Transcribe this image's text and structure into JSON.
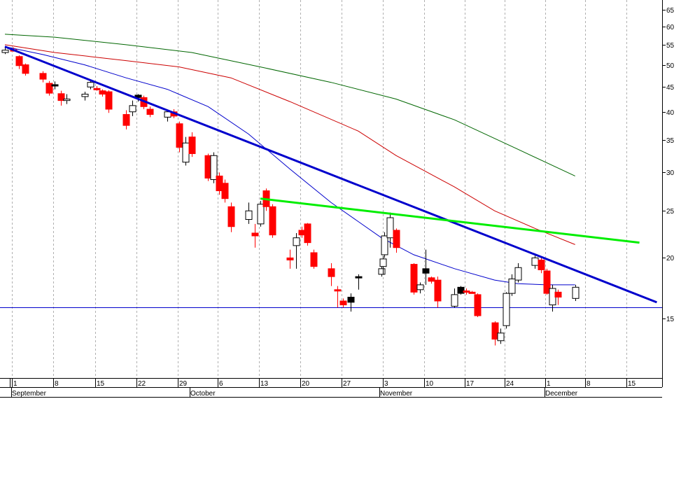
{
  "chart_data": {
    "type": "candlestick",
    "scale": "log",
    "ylim": [
      11.5,
      68
    ],
    "y_ticks": [
      15,
      20,
      25,
      30,
      35,
      40,
      45,
      50,
      55,
      60,
      65
    ],
    "grid": "vertical dashed lines at week starts",
    "x_day_labels": [
      "1",
      "8",
      "15",
      "22",
      "29",
      "6",
      "13",
      "20",
      "27",
      "3",
      "10",
      "17",
      "24",
      "1",
      "8",
      "15"
    ],
    "x_day_label_dates": [
      "09-01",
      "09-08",
      "09-15",
      "09-22",
      "09-29",
      "10-06",
      "10-13",
      "10-20",
      "10-27",
      "11-03",
      "11-10",
      "11-17",
      "11-24",
      "12-01",
      "12-08",
      "12-15"
    ],
    "month_labels": [
      {
        "label": "September",
        "date": "09-01"
      },
      {
        "label": "October",
        "date": "10-01"
      },
      {
        "label": "November",
        "date": "11-01"
      },
      {
        "label": "December",
        "date": "12-01"
      }
    ],
    "candles": [
      {
        "date": "08-30",
        "open": 53.0,
        "high": 54.4,
        "low": 52.6,
        "close": 53.6,
        "color": "white"
      },
      {
        "date": "09-01",
        "open": 53.6,
        "high": 54.3,
        "low": 53.2,
        "close": 53.7,
        "color": "red"
      },
      {
        "date": "09-02",
        "open": 52.0,
        "high": 52.3,
        "low": 49.0,
        "close": 49.8,
        "color": "red"
      },
      {
        "date": "09-03",
        "open": 50.0,
        "high": 50.3,
        "low": 47.5,
        "close": 48.0,
        "color": "red"
      },
      {
        "date": "09-06",
        "open": 48.0,
        "high": 48.5,
        "low": 46.0,
        "close": 46.7,
        "color": "red"
      },
      {
        "date": "09-07",
        "open": 45.8,
        "high": 46.3,
        "low": 43.2,
        "close": 43.7,
        "color": "red"
      },
      {
        "date": "09-08",
        "open": 45.5,
        "high": 46.2,
        "low": 44.5,
        "close": 45.2,
        "color": "black"
      },
      {
        "date": "09-09",
        "open": 43.6,
        "high": 44.2,
        "low": 41.2,
        "close": 42.2,
        "color": "red"
      },
      {
        "date": "09-10",
        "open": 42.2,
        "high": 43.5,
        "low": 41.5,
        "close": 42.5,
        "color": "white"
      },
      {
        "date": "09-13",
        "open": 43.0,
        "high": 44.0,
        "low": 42.2,
        "close": 43.5,
        "color": "white"
      },
      {
        "date": "09-14",
        "open": 45.0,
        "high": 46.6,
        "low": 44.5,
        "close": 46.0,
        "color": "white"
      },
      {
        "date": "09-15",
        "open": 44.6,
        "high": 45.2,
        "low": 44.2,
        "close": 44.7,
        "color": "red"
      },
      {
        "date": "09-16",
        "open": 43.5,
        "high": 44.5,
        "low": 43.0,
        "close": 44.2,
        "color": "red"
      },
      {
        "date": "09-17",
        "open": 44.0,
        "high": 44.3,
        "low": 39.8,
        "close": 40.5,
        "color": "red"
      },
      {
        "date": "09-20",
        "open": 39.5,
        "high": 40.3,
        "low": 36.8,
        "close": 37.5,
        "color": "red"
      },
      {
        "date": "09-21",
        "open": 40.0,
        "high": 42.2,
        "low": 39.2,
        "close": 41.2,
        "color": "white"
      },
      {
        "date": "09-22",
        "open": 42.8,
        "high": 43.5,
        "low": 42.0,
        "close": 43.3,
        "color": "black"
      },
      {
        "date": "09-23",
        "open": 42.8,
        "high": 43.2,
        "low": 40.5,
        "close": 41.0,
        "color": "red"
      },
      {
        "date": "09-24",
        "open": 40.5,
        "high": 41.0,
        "low": 39.0,
        "close": 39.5,
        "color": "red"
      },
      {
        "date": "09-27",
        "open": 39.0,
        "high": 40.2,
        "low": 38.2,
        "close": 40.0,
        "color": "white"
      },
      {
        "date": "09-28",
        "open": 40.0,
        "high": 40.5,
        "low": 38.8,
        "close": 39.2,
        "color": "red"
      },
      {
        "date": "09-29",
        "open": 37.8,
        "high": 38.2,
        "low": 33.0,
        "close": 33.8,
        "color": "red"
      },
      {
        "date": "09-30",
        "open": 31.5,
        "high": 35.5,
        "low": 31.0,
        "close": 34.5,
        "color": "white"
      },
      {
        "date": "10-01",
        "open": 35.5,
        "high": 36.3,
        "low": 32.3,
        "close": 32.8,
        "color": "red"
      },
      {
        "date": "10-04",
        "open": 32.5,
        "high": 32.8,
        "low": 28.8,
        "close": 29.2,
        "color": "red"
      },
      {
        "date": "10-05",
        "open": 29.0,
        "high": 33.0,
        "low": 28.5,
        "close": 32.5,
        "color": "white"
      },
      {
        "date": "10-06",
        "open": 29.5,
        "high": 30.0,
        "low": 27.0,
        "close": 27.5,
        "color": "red"
      },
      {
        "date": "10-07",
        "open": 28.5,
        "high": 29.0,
        "low": 26.0,
        "close": 26.5,
        "color": "red"
      },
      {
        "date": "10-08",
        "open": 25.5,
        "high": 26.0,
        "low": 22.6,
        "close": 23.2,
        "color": "red"
      },
      {
        "date": "10-11",
        "open": 24.0,
        "high": 26.0,
        "low": 23.5,
        "close": 25.0,
        "color": "white"
      },
      {
        "date": "10-12",
        "open": 22.5,
        "high": 23.5,
        "low": 21.0,
        "close": 22.2,
        "color": "red"
      },
      {
        "date": "10-13",
        "open": 23.5,
        "high": 26.2,
        "low": 23.2,
        "close": 25.8,
        "color": "white"
      },
      {
        "date": "10-14",
        "open": 27.5,
        "high": 27.8,
        "low": 25.0,
        "close": 25.5,
        "color": "red"
      },
      {
        "date": "10-15",
        "open": 25.5,
        "high": 25.8,
        "low": 22.0,
        "close": 22.3,
        "color": "red"
      },
      {
        "date": "10-18",
        "open": 20.0,
        "high": 20.8,
        "low": 19.0,
        "close": 19.8,
        "color": "red"
      },
      {
        "date": "10-19",
        "open": 21.2,
        "high": 22.5,
        "low": 19.0,
        "close": 22.0,
        "color": "white"
      },
      {
        "date": "10-20",
        "open": 22.8,
        "high": 23.2,
        "low": 22.0,
        "close": 22.3,
        "color": "red"
      },
      {
        "date": "10-21",
        "open": 23.5,
        "high": 23.6,
        "low": 21.2,
        "close": 21.5,
        "color": "red"
      },
      {
        "date": "10-22",
        "open": 20.5,
        "high": 20.8,
        "low": 19.0,
        "close": 19.2,
        "color": "red"
      },
      {
        "date": "10-25",
        "open": 19.0,
        "high": 19.5,
        "low": 17.5,
        "close": 18.3,
        "color": "red"
      },
      {
        "date": "10-26",
        "open": 17.2,
        "high": 17.5,
        "low": 15.8,
        "close": 17.1,
        "color": "red"
      },
      {
        "date": "10-27",
        "open": 16.3,
        "high": 16.5,
        "low": 15.8,
        "close": 16.0,
        "color": "red"
      },
      {
        "date": "10-28",
        "open": 16.2,
        "high": 16.9,
        "low": 15.5,
        "close": 16.6,
        "color": "black"
      },
      {
        "date": "10-29",
        "open": 18.2,
        "high": 18.5,
        "low": 17.2,
        "close": 18.3,
        "color": "black"
      },
      {
        "date": "11-01",
        "open": 18.5,
        "high": 19.3,
        "low": 18.3,
        "close": 19.0,
        "color": "white"
      },
      {
        "date": "11-02",
        "open": 19.2,
        "high": 20.2,
        "low": 18.5,
        "close": 19.9,
        "color": "white"
      },
      {
        "date": "11-03",
        "open": 20.3,
        "high": 22.6,
        "low": 20.0,
        "close": 22.2,
        "color": "white"
      },
      {
        "date": "11-04",
        "open": 22.0,
        "high": 24.8,
        "low": 21.0,
        "close": 24.2,
        "color": "white"
      },
      {
        "date": "11-05",
        "open": 22.8,
        "high": 23.0,
        "low": 20.5,
        "close": 21.0,
        "color": "red"
      },
      {
        "date": "11-08",
        "open": 19.4,
        "high": 19.5,
        "low": 16.8,
        "close": 17.0,
        "color": "red"
      },
      {
        "date": "11-09",
        "open": 17.2,
        "high": 17.8,
        "low": 16.9,
        "close": 17.6,
        "color": "white"
      },
      {
        "date": "11-10",
        "open": 19.0,
        "high": 20.8,
        "low": 17.6,
        "close": 18.6,
        "color": "black"
      },
      {
        "date": "11-11",
        "open": 18.2,
        "high": 18.3,
        "low": 17.7,
        "close": 17.9,
        "color": "red"
      },
      {
        "date": "11-12",
        "open": 18.0,
        "high": 18.3,
        "low": 15.8,
        "close": 16.3,
        "color": "red"
      },
      {
        "date": "11-15",
        "open": 16.8,
        "high": 17.3,
        "low": 15.8,
        "close": 15.9,
        "color": "white"
      },
      {
        "date": "11-16",
        "open": 16.9,
        "high": 17.5,
        "low": 16.8,
        "close": 17.4,
        "color": "black"
      },
      {
        "date": "11-17",
        "open": 17.1,
        "high": 17.3,
        "low": 16.8,
        "close": 17.0,
        "color": "red"
      },
      {
        "date": "11-18",
        "open": 17.0,
        "high": 17.1,
        "low": 16.9,
        "close": 17.0,
        "color": "red"
      },
      {
        "date": "11-19",
        "open": 16.8,
        "high": 16.9,
        "low": 15.1,
        "close": 15.2,
        "color": "red"
      },
      {
        "date": "11-22",
        "open": 14.7,
        "high": 14.8,
        "low": 13.2,
        "close": 13.6,
        "color": "red"
      },
      {
        "date": "11-23",
        "open": 13.5,
        "high": 14.3,
        "low": 13.3,
        "close": 14.0,
        "color": "white"
      },
      {
        "date": "11-24",
        "open": 14.5,
        "high": 17.0,
        "low": 14.3,
        "close": 16.9,
        "color": "white"
      },
      {
        "date": "11-25",
        "open": 16.9,
        "high": 18.5,
        "low": 16.7,
        "close": 18.1,
        "color": "white"
      },
      {
        "date": "11-26",
        "open": 18.0,
        "high": 19.5,
        "low": 17.8,
        "close": 19.1,
        "color": "white"
      },
      {
        "date": "11-29",
        "open": 19.3,
        "high": 20.2,
        "low": 19.0,
        "close": 20.0,
        "color": "white"
      },
      {
        "date": "11-30",
        "open": 19.8,
        "high": 20.0,
        "low": 18.6,
        "close": 18.9,
        "color": "red"
      },
      {
        "date": "12-01",
        "open": 18.8,
        "high": 19.0,
        "low": 16.8,
        "close": 16.9,
        "color": "red"
      },
      {
        "date": "12-02",
        "open": 16.0,
        "high": 17.6,
        "low": 15.5,
        "close": 17.3,
        "color": "white"
      },
      {
        "date": "12-03",
        "open": 17.0,
        "high": 17.2,
        "low": 16.0,
        "close": 16.6,
        "color": "red"
      },
      {
        "date": "12-06",
        "open": 16.5,
        "high": 17.6,
        "low": 16.3,
        "close": 17.4,
        "color": "white"
      }
    ],
    "moving_averages": [
      {
        "color": "#0000cc",
        "points": [
          [
            "08-30",
            54.5
          ],
          [
            "09-06",
            52.5
          ],
          [
            "09-13",
            50.0
          ],
          [
            "09-20",
            47.0
          ],
          [
            "09-27",
            44.5
          ],
          [
            "10-04",
            41.0
          ],
          [
            "10-11",
            36.0
          ],
          [
            "10-18",
            30.5
          ],
          [
            "10-25",
            26.0
          ],
          [
            "11-01",
            22.0
          ],
          [
            "11-08",
            20.3
          ],
          [
            "11-15",
            19.0
          ],
          [
            "11-22",
            18.0
          ],
          [
            "11-26",
            17.7
          ],
          [
            "12-01",
            17.6
          ],
          [
            "12-06",
            17.6
          ]
        ]
      },
      {
        "color": "#cc0000",
        "points": [
          [
            "08-30",
            55.0
          ],
          [
            "09-08",
            53.0
          ],
          [
            "09-20",
            51.0
          ],
          [
            "09-29",
            49.5
          ],
          [
            "10-08",
            47.0
          ],
          [
            "10-18",
            42.0
          ],
          [
            "10-29",
            36.5
          ],
          [
            "11-05",
            32.5
          ],
          [
            "11-15",
            28.0
          ],
          [
            "11-22",
            25.0
          ],
          [
            "11-29",
            23.0
          ],
          [
            "12-06",
            21.3
          ]
        ]
      },
      {
        "color": "#006600",
        "points": [
          [
            "08-30",
            57.8
          ],
          [
            "09-08",
            57.0
          ],
          [
            "09-20",
            55.0
          ],
          [
            "10-01",
            53.0
          ],
          [
            "10-13",
            49.5
          ],
          [
            "10-25",
            46.0
          ],
          [
            "11-05",
            42.5
          ],
          [
            "11-15",
            38.5
          ],
          [
            "11-26",
            33.5
          ],
          [
            "12-06",
            29.5
          ]
        ]
      }
    ],
    "trendlines": [
      {
        "color": "#0000cc",
        "from": [
          "08-30",
          54.5
        ],
        "to": [
          "12-20",
          16.2
        ]
      },
      {
        "color": "#00ee00",
        "from": [
          "10-13",
          26.5
        ],
        "to": [
          "12-17",
          21.5
        ]
      }
    ],
    "horizontal_line": {
      "color": "#0000cc",
      "value": 15.8
    }
  }
}
